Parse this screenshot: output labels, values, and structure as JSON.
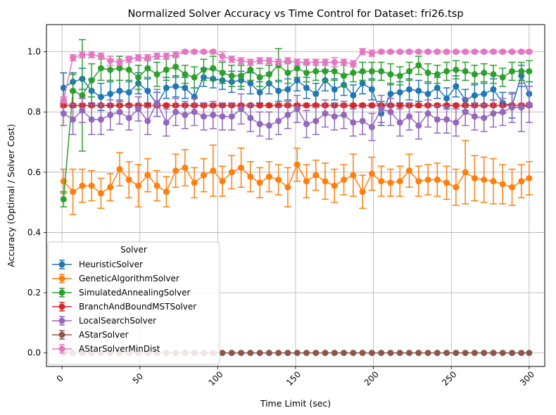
{
  "chart_data": {
    "type": "line",
    "title": "Normalized Solver Accuracy vs Time Control for Dataset: fri26.tsp",
    "xlabel": "Time Limit (sec)",
    "ylabel": "Accuracy (Optimal / Solver Cost)",
    "xlim": [
      -10,
      310
    ],
    "ylim": [
      -0.045,
      1.09
    ],
    "xticks": [
      0,
      50,
      100,
      150,
      200,
      250,
      300
    ],
    "yticks": [
      0.0,
      0.2,
      0.4,
      0.6,
      0.8,
      1.0
    ],
    "xtick_labels": [
      "0",
      "50",
      "100",
      "150",
      "200",
      "250",
      "300"
    ],
    "ytick_labels": [
      "0.0",
      "0.2",
      "0.4",
      "0.6",
      "0.8",
      "1.0"
    ],
    "grid": true,
    "legend_title": "Solver",
    "legend_position": "lower-left",
    "x": [
      1,
      7,
      13,
      19,
      25,
      31,
      37,
      43,
      49,
      55,
      61,
      67,
      73,
      79,
      85,
      91,
      97,
      103,
      109,
      115,
      121,
      127,
      133,
      139,
      145,
      151,
      157,
      163,
      169,
      175,
      181,
      187,
      193,
      199,
      205,
      211,
      217,
      223,
      229,
      235,
      241,
      247,
      253,
      259,
      265,
      271,
      277,
      283,
      289,
      295,
      300
    ],
    "series": [
      {
        "name": "HeuristicSolver",
        "color": "#1f77b4",
        "values": [
          0.88,
          0.9,
          0.91,
          0.87,
          0.85,
          0.86,
          0.87,
          0.865,
          0.895,
          0.87,
          0.825,
          0.88,
          0.885,
          0.88,
          0.85,
          0.915,
          0.91,
          0.905,
          0.9,
          0.905,
          0.895,
          0.865,
          0.895,
          0.87,
          0.875,
          0.905,
          0.88,
          0.86,
          0.905,
          0.875,
          0.89,
          0.855,
          0.895,
          0.875,
          0.795,
          0.86,
          0.865,
          0.875,
          0.87,
          0.86,
          0.88,
          0.845,
          0.885,
          0.84,
          0.855,
          0.86,
          0.875,
          0.83,
          0.82,
          0.92,
          0.86
        ],
        "err": [
          0.05,
          0.03,
          0.035,
          0.04,
          0.045,
          0.04,
          0.035,
          0.04,
          0.035,
          0.04,
          0.04,
          0.035,
          0.035,
          0.035,
          0.03,
          0.03,
          0.03,
          0.03,
          0.035,
          0.03,
          0.035,
          0.035,
          0.035,
          0.035,
          0.035,
          0.035,
          0.035,
          0.035,
          0.035,
          0.035,
          0.035,
          0.035,
          0.035,
          0.035,
          0.04,
          0.035,
          0.035,
          0.035,
          0.035,
          0.035,
          0.035,
          0.035,
          0.035,
          0.035,
          0.035,
          0.035,
          0.035,
          0.035,
          0.04,
          0.035,
          0.04
        ]
      },
      {
        "name": "GeneticAlgorithmSolver",
        "color": "#ff7f0e",
        "values": [
          0.57,
          0.535,
          0.555,
          0.555,
          0.53,
          0.55,
          0.61,
          0.575,
          0.555,
          0.59,
          0.555,
          0.535,
          0.605,
          0.615,
          0.565,
          0.59,
          0.605,
          0.57,
          0.6,
          0.615,
          0.585,
          0.565,
          0.585,
          0.575,
          0.55,
          0.625,
          0.57,
          0.59,
          0.57,
          0.555,
          0.575,
          0.59,
          0.535,
          0.595,
          0.57,
          0.565,
          0.57,
          0.605,
          0.57,
          0.575,
          0.575,
          0.565,
          0.55,
          0.6,
          0.58,
          0.575,
          0.57,
          0.56,
          0.55,
          0.57,
          0.58
        ],
        "err": [
          0.04,
          0.075,
          0.055,
          0.05,
          0.05,
          0.045,
          0.055,
          0.06,
          0.07,
          0.055,
          0.05,
          0.05,
          0.055,
          0.06,
          0.05,
          0.055,
          0.085,
          0.05,
          0.055,
          0.065,
          0.05,
          0.05,
          0.05,
          0.05,
          0.065,
          0.055,
          0.055,
          0.05,
          0.06,
          0.055,
          0.05,
          0.07,
          0.055,
          0.055,
          0.05,
          0.045,
          0.05,
          0.055,
          0.05,
          0.05,
          0.055,
          0.055,
          0.06,
          0.105,
          0.075,
          0.075,
          0.075,
          0.065,
          0.06,
          0.055,
          0.055
        ]
      },
      {
        "name": "SimulatedAnnealingSolver",
        "color": "#2ca02c",
        "values": [
          0.51,
          0.87,
          0.855,
          0.905,
          0.945,
          0.94,
          0.945,
          0.94,
          0.915,
          0.945,
          0.925,
          0.94,
          0.95,
          0.925,
          0.915,
          0.94,
          0.945,
          0.93,
          0.92,
          0.92,
          0.94,
          0.915,
          0.925,
          0.955,
          0.93,
          0.945,
          0.93,
          0.935,
          0.935,
          0.935,
          0.92,
          0.93,
          0.935,
          0.935,
          0.935,
          0.925,
          0.92,
          0.935,
          0.955,
          0.93,
          0.925,
          0.935,
          0.94,
          0.935,
          0.925,
          0.93,
          0.925,
          0.915,
          0.935,
          0.935,
          0.935
        ],
        "err": [
          0.025,
          0.055,
          0.185,
          0.055,
          0.04,
          0.035,
          0.04,
          0.04,
          0.04,
          0.03,
          0.04,
          0.035,
          0.035,
          0.03,
          0.035,
          0.035,
          0.04,
          0.035,
          0.035,
          0.035,
          0.035,
          0.03,
          0.03,
          0.055,
          0.035,
          0.03,
          0.03,
          0.03,
          0.03,
          0.03,
          0.035,
          0.03,
          0.03,
          0.03,
          0.03,
          0.035,
          0.03,
          0.03,
          0.03,
          0.03,
          0.03,
          0.03,
          0.03,
          0.03,
          0.03,
          0.03,
          0.03,
          0.03,
          0.03,
          0.03,
          0.035
        ]
      },
      {
        "name": "BranchAndBoundMSTSolver",
        "color": "#d62728",
        "values": [
          0.822,
          0.822,
          0.822,
          0.822,
          0.822,
          0.822,
          0.822,
          0.822,
          0.822,
          0.822,
          0.822,
          0.822,
          0.822,
          0.822,
          0.822,
          0.822,
          0.822,
          0.822,
          0.822,
          0.822,
          0.822,
          0.822,
          0.822,
          0.822,
          0.822,
          0.822,
          0.822,
          0.822,
          0.822,
          0.822,
          0.822,
          0.822,
          0.822,
          0.822,
          0.822,
          0.822,
          0.822,
          0.822,
          0.822,
          0.822,
          0.822,
          0.822,
          0.822,
          0.822,
          0.822,
          0.822,
          0.822,
          0.822,
          0.822,
          0.822,
          0.822
        ],
        "err": [
          0.005,
          0.005,
          0.005,
          0.005,
          0.005,
          0.005,
          0.005,
          0.005,
          0.005,
          0.005,
          0.005,
          0.005,
          0.005,
          0.005,
          0.005,
          0.005,
          0.005,
          0.005,
          0.005,
          0.005,
          0.005,
          0.005,
          0.005,
          0.005,
          0.005,
          0.005,
          0.005,
          0.005,
          0.005,
          0.005,
          0.005,
          0.005,
          0.005,
          0.005,
          0.005,
          0.005,
          0.005,
          0.005,
          0.005,
          0.005,
          0.005,
          0.005,
          0.005,
          0.005,
          0.005,
          0.005,
          0.005,
          0.005,
          0.005,
          0.005,
          0.005
        ]
      },
      {
        "name": "LocalSearchSolver",
        "color": "#9467bd",
        "values": [
          0.795,
          0.775,
          0.805,
          0.775,
          0.775,
          0.79,
          0.8,
          0.78,
          0.81,
          0.77,
          0.83,
          0.765,
          0.8,
          0.79,
          0.8,
          0.785,
          0.79,
          0.785,
          0.785,
          0.81,
          0.78,
          0.76,
          0.755,
          0.77,
          0.79,
          0.81,
          0.76,
          0.77,
          0.795,
          0.785,
          0.79,
          0.765,
          0.77,
          0.75,
          0.81,
          0.8,
          0.765,
          0.785,
          0.755,
          0.795,
          0.775,
          0.775,
          0.765,
          0.8,
          0.785,
          0.78,
          0.795,
          0.8,
          0.815,
          0.815,
          0.825
        ],
        "err": [
          0.04,
          0.05,
          0.04,
          0.05,
          0.05,
          0.05,
          0.04,
          0.04,
          0.04,
          0.045,
          0.045,
          0.045,
          0.045,
          0.045,
          0.045,
          0.045,
          0.045,
          0.045,
          0.045,
          0.05,
          0.045,
          0.04,
          0.045,
          0.045,
          0.045,
          0.045,
          0.045,
          0.045,
          0.045,
          0.045,
          0.045,
          0.045,
          0.045,
          0.045,
          0.045,
          0.045,
          0.045,
          0.045,
          0.045,
          0.045,
          0.045,
          0.045,
          0.045,
          0.045,
          0.045,
          0.045,
          0.045,
          0.045,
          0.05,
          0.08,
          0.06
        ]
      },
      {
        "name": "AStarSolver",
        "color": "#8c564b",
        "values": [
          0.0,
          0.0,
          0.0,
          0.0,
          0.0,
          0.0,
          0.0,
          0.0,
          0.0,
          0.0,
          0.0,
          0.0,
          0.0,
          0.0,
          0.0,
          0.0,
          0.0,
          0.0,
          0.0,
          0.0,
          0.0,
          0.0,
          0.0,
          0.0,
          0.0,
          0.0,
          0.0,
          0.0,
          0.0,
          0.0,
          0.0,
          0.0,
          0.0,
          0.0,
          0.0,
          0.0,
          0.0,
          0.0,
          0.0,
          0.0,
          0.0,
          0.0,
          0.0,
          0.0,
          0.0,
          0.0,
          0.0,
          0.0,
          0.0,
          0.0,
          0.0
        ],
        "err": [
          0,
          0,
          0,
          0,
          0,
          0,
          0,
          0,
          0,
          0,
          0,
          0,
          0,
          0,
          0,
          0,
          0,
          0,
          0,
          0,
          0,
          0,
          0,
          0,
          0,
          0,
          0,
          0,
          0,
          0,
          0,
          0,
          0,
          0,
          0,
          0,
          0,
          0,
          0,
          0,
          0,
          0,
          0,
          0,
          0,
          0,
          0,
          0,
          0,
          0,
          0
        ]
      },
      {
        "name": "AStarSolverMinDist",
        "color": "#e377c2",
        "values": [
          0.84,
          0.98,
          0.99,
          0.99,
          0.985,
          0.97,
          0.965,
          0.975,
          0.98,
          0.98,
          0.985,
          0.985,
          0.99,
          1.0,
          1.0,
          1.0,
          1.0,
          0.985,
          0.975,
          0.97,
          0.965,
          0.97,
          0.97,
          0.965,
          0.97,
          0.965,
          0.965,
          0.965,
          0.965,
          0.965,
          0.965,
          0.96,
          1.0,
          0.995,
          1.0,
          1.0,
          1.0,
          1.0,
          1.0,
          1.0,
          1.0,
          1.0,
          1.0,
          1.0,
          1.0,
          1.0,
          1.0,
          1.0,
          1.0,
          1.0,
          1.0
        ],
        "err": [
          0.01,
          0.01,
          0.01,
          0.01,
          0.01,
          0.015,
          0.01,
          0.01,
          0.01,
          0.01,
          0.01,
          0.01,
          0.01,
          0.005,
          0.005,
          0.005,
          0.005,
          0.015,
          0.01,
          0.01,
          0.01,
          0.01,
          0.01,
          0.01,
          0.01,
          0.01,
          0.01,
          0.01,
          0.01,
          0.015,
          0.01,
          0.01,
          0.01,
          0.01,
          0.005,
          0.005,
          0.005,
          0.005,
          0.005,
          0.005,
          0.005,
          0.005,
          0.005,
          0.005,
          0.005,
          0.005,
          0.005,
          0.005,
          0.005,
          0.005,
          0.005
        ]
      }
    ]
  }
}
